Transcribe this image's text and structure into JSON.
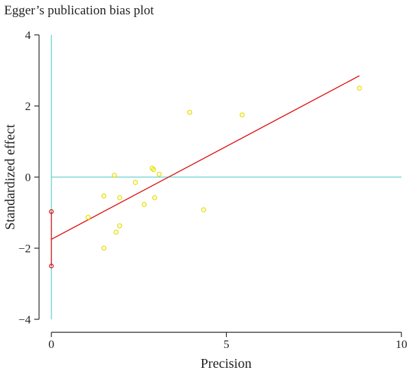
{
  "chart_data": {
    "type": "scatter",
    "title": "Egger’s publication bias plot",
    "xlabel": "Precision",
    "ylabel": "Standardized effect",
    "xlim": [
      0,
      10
    ],
    "ylim": [
      -4,
      4
    ],
    "xticks": [
      0,
      5,
      10
    ],
    "yticks": [
      -4,
      -2,
      0,
      2,
      4
    ],
    "grid": false,
    "colors": {
      "points": "#e8e000",
      "regression": "#dd1111",
      "reference": "#66cccc",
      "intercept_ci": "#dd1111"
    },
    "points": [
      {
        "x": 1.05,
        "y": -1.13
      },
      {
        "x": 1.5,
        "y": -0.53
      },
      {
        "x": 1.5,
        "y": -2.0
      },
      {
        "x": 1.8,
        "y": 0.05
      },
      {
        "x": 1.85,
        "y": -1.55
      },
      {
        "x": 1.95,
        "y": -0.58
      },
      {
        "x": 1.95,
        "y": -1.37
      },
      {
        "x": 2.4,
        "y": -0.15
      },
      {
        "x": 2.65,
        "y": -0.77
      },
      {
        "x": 2.88,
        "y": 0.25
      },
      {
        "x": 2.92,
        "y": 0.21
      },
      {
        "x": 2.95,
        "y": -0.58
      },
      {
        "x": 3.08,
        "y": 0.08
      },
      {
        "x": 3.95,
        "y": 1.82
      },
      {
        "x": 4.35,
        "y": -0.92
      },
      {
        "x": 5.45,
        "y": 1.75
      },
      {
        "x": 8.8,
        "y": 2.5
      }
    ],
    "regression_line": {
      "x": [
        0,
        8.8
      ],
      "y": [
        -1.75,
        2.85
      ]
    },
    "intercept_ci": {
      "x": 0,
      "y": [
        -2.5,
        -0.97
      ]
    }
  }
}
